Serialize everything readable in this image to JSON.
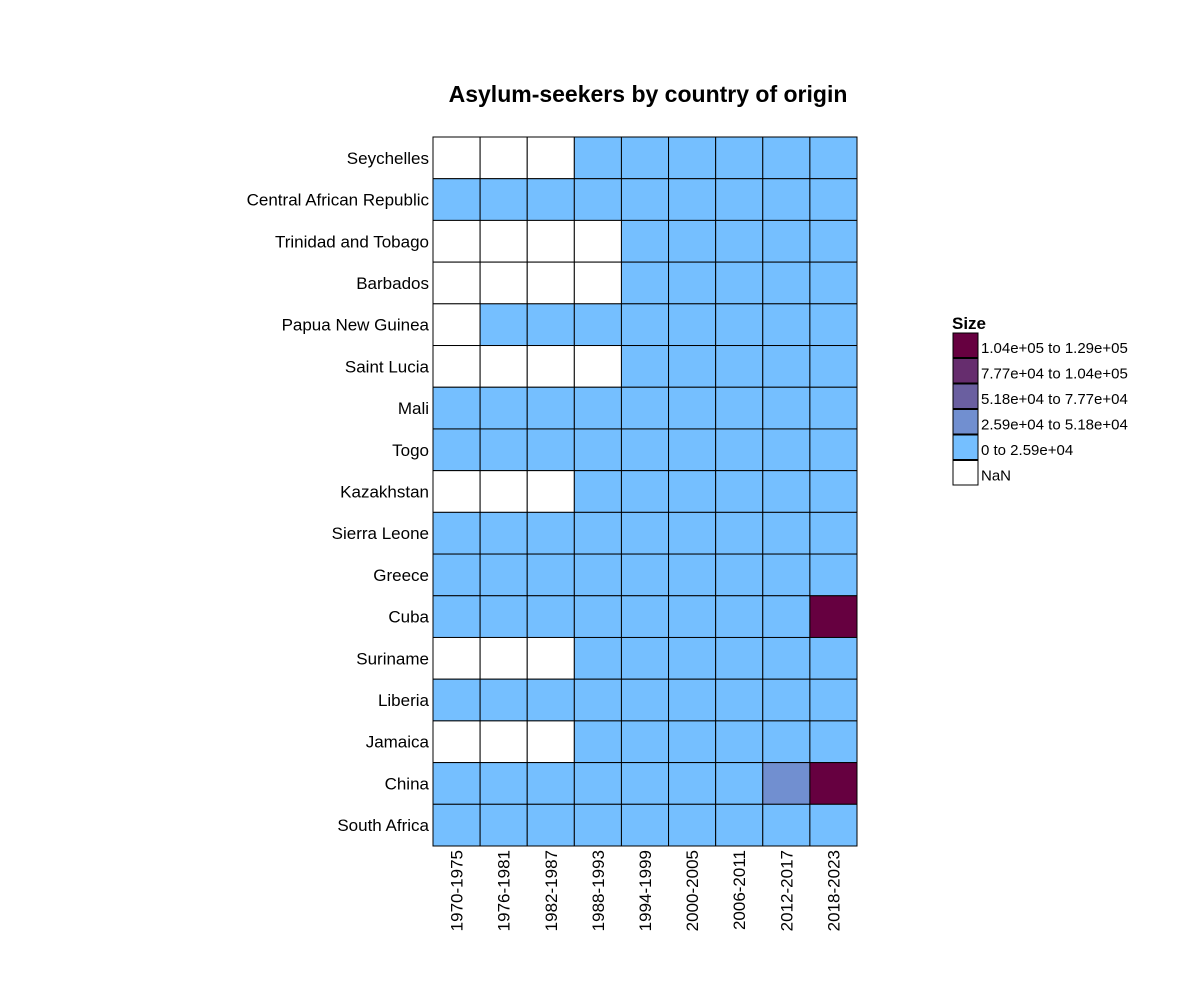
{
  "chart_data": {
    "type": "heatmap",
    "title": "Asylum-seekers by country of origin",
    "xlabel": "",
    "ylabel": "",
    "x_categories": [
      "1970-1975",
      "1976-1981",
      "1982-1987",
      "1988-1993",
      "1994-1999",
      "2000-2005",
      "2006-2011",
      "2012-2017",
      "2018-2023"
    ],
    "y_categories": [
      "Seychelles",
      "Central African Republic",
      "Trinidad and Tobago",
      "Barbados",
      "Papua New Guinea",
      "Saint Lucia",
      "Mali",
      "Togo",
      "Kazakhstan",
      "Sierra Leone",
      "Greece",
      "Cuba",
      "Suriname",
      "Liberia",
      "Jamaica",
      "China",
      "South Africa"
    ],
    "cell_bins": [
      [
        5,
        5,
        5,
        0,
        0,
        0,
        0,
        0,
        0
      ],
      [
        0,
        0,
        0,
        0,
        0,
        0,
        0,
        0,
        0
      ],
      [
        5,
        5,
        5,
        5,
        0,
        0,
        0,
        0,
        0
      ],
      [
        5,
        5,
        5,
        5,
        0,
        0,
        0,
        0,
        0
      ],
      [
        5,
        0,
        0,
        0,
        0,
        0,
        0,
        0,
        0
      ],
      [
        5,
        5,
        5,
        5,
        0,
        0,
        0,
        0,
        0
      ],
      [
        0,
        0,
        0,
        0,
        0,
        0,
        0,
        0,
        0
      ],
      [
        0,
        0,
        0,
        0,
        0,
        0,
        0,
        0,
        0
      ],
      [
        5,
        5,
        5,
        0,
        0,
        0,
        0,
        0,
        0
      ],
      [
        0,
        0,
        0,
        0,
        0,
        0,
        0,
        0,
        0
      ],
      [
        0,
        0,
        0,
        0,
        0,
        0,
        0,
        0,
        0
      ],
      [
        0,
        0,
        0,
        0,
        0,
        0,
        0,
        0,
        4
      ],
      [
        5,
        5,
        5,
        0,
        0,
        0,
        0,
        0,
        0
      ],
      [
        0,
        0,
        0,
        0,
        0,
        0,
        0,
        0,
        0
      ],
      [
        5,
        5,
        5,
        0,
        0,
        0,
        0,
        0,
        0
      ],
      [
        0,
        0,
        0,
        0,
        0,
        0,
        0,
        1,
        4
      ],
      [
        0,
        0,
        0,
        0,
        0,
        0,
        0,
        0,
        0
      ]
    ],
    "legend": {
      "title": "Size",
      "placement": "right",
      "bins": [
        {
          "label": "1.04e+05 to 1.29e+05",
          "color": "#660040"
        },
        {
          "label": "7.77e+04 to 1.04e+05",
          "color": "#662d6e"
        },
        {
          "label": "5.18e+04 to 7.77e+04",
          "color": "#6a5fa0"
        },
        {
          "label": "2.59e+04 to 5.18e+04",
          "color": "#718fd0"
        },
        {
          "label": "0 to 2.59e+04",
          "color": "#75bfff"
        },
        {
          "label": "NaN",
          "color": "#ffffff"
        }
      ]
    },
    "bin_order_note_key": "cell_bins index 0 = '0 to 2.59e+04', 1 = '2.59e+04 to 5.18e+04', 2 = '5.18e+04 to 7.77e+04', 3 = '7.77e+04 to 1.04e+05', 4 = '1.04e+05 to 1.29e+05', 5 = 'NaN'",
    "grid": true
  }
}
